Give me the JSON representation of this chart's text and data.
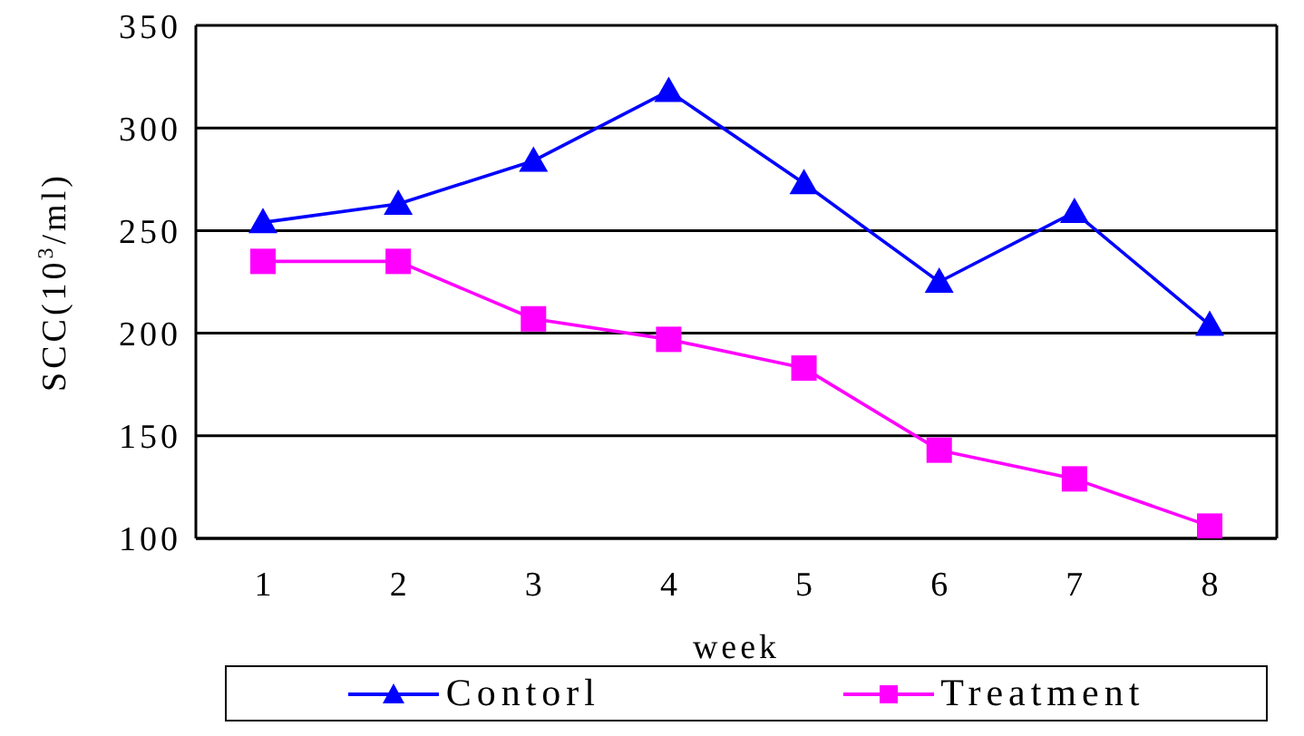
{
  "chart_data": {
    "type": "line",
    "xlabel": "week",
    "ylabel": "SCC(10$^{3}$/ml)",
    "categories": [
      "1",
      "2",
      "3",
      "4",
      "5",
      "6",
      "7",
      "8"
    ],
    "series": [
      {
        "name": "Contorl",
        "color": "#0000ff",
        "marker": "triangle",
        "values": [
          254,
          263,
          284,
          318,
          273,
          225,
          259,
          204
        ]
      },
      {
        "name": "Treatment",
        "color": "#ff00ff",
        "marker": "square",
        "values": [
          235,
          235,
          207,
          197,
          183,
          143,
          129,
          106
        ]
      }
    ],
    "ylim": [
      100,
      350
    ],
    "yticks": [
      100,
      150,
      200,
      250,
      300,
      350
    ],
    "grid": "y",
    "legend": "bottom"
  }
}
